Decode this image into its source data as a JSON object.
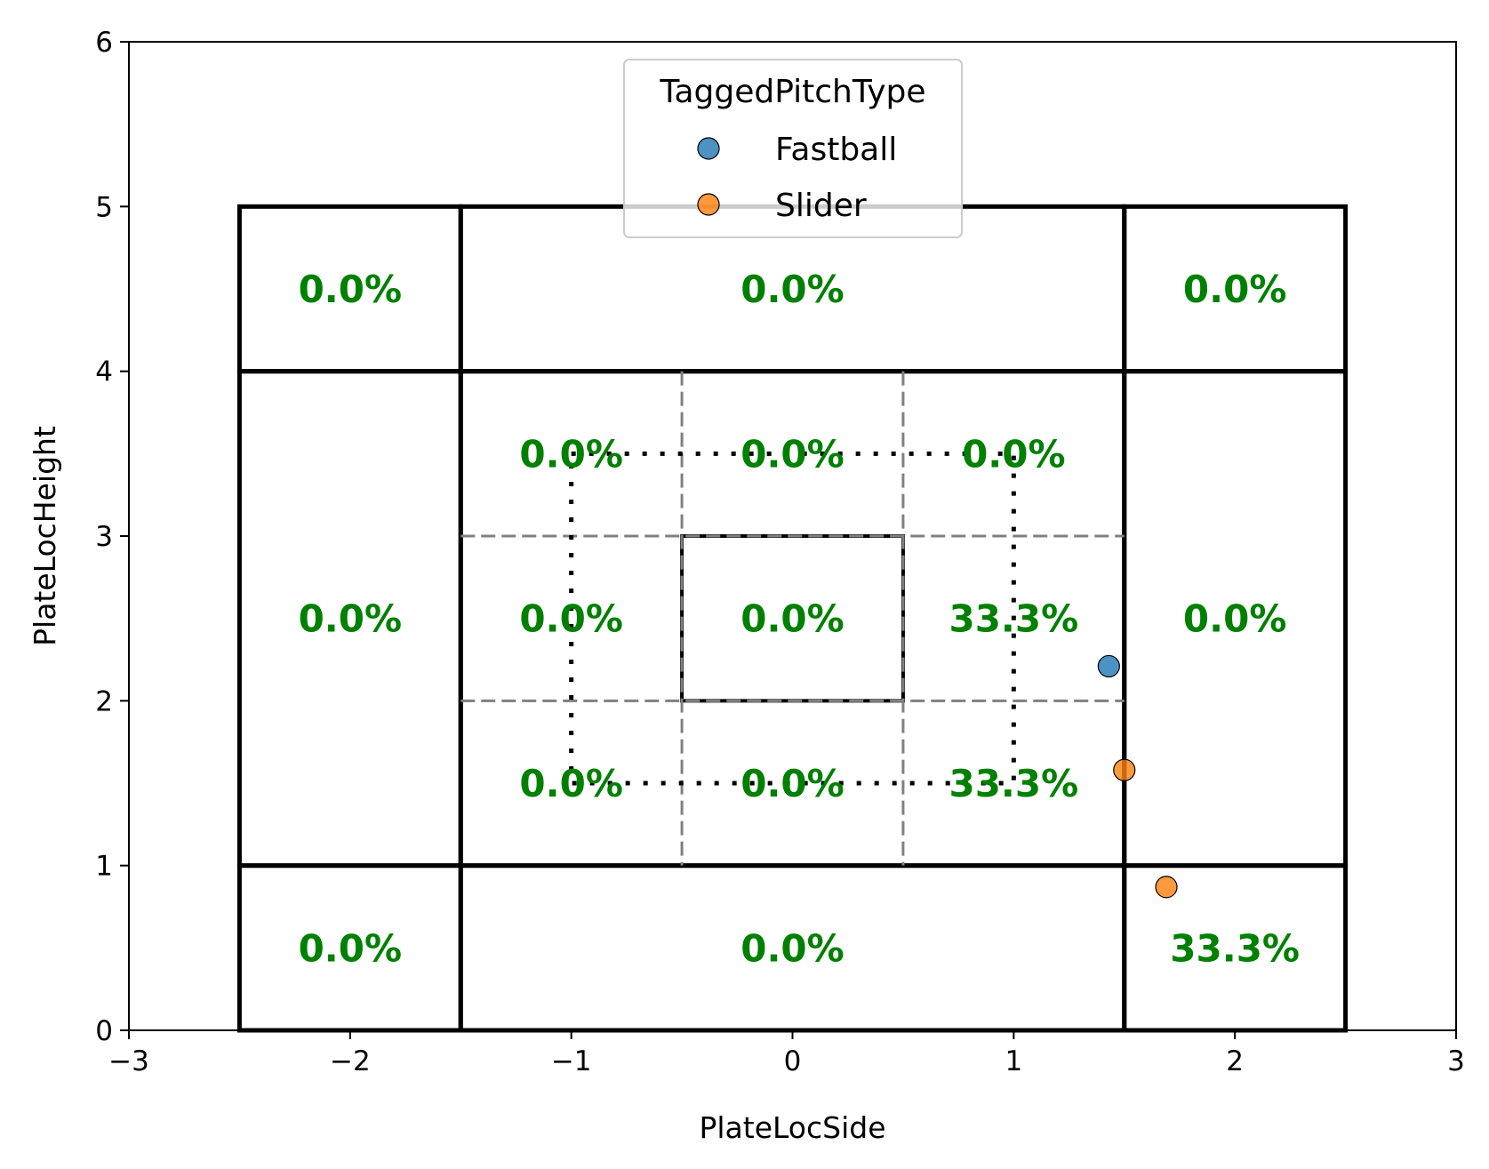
{
  "chart_data": {
    "type": "scatter",
    "title": "",
    "xlabel": "PlateLocSide",
    "ylabel": "PlateLocHeight",
    "xlim": [
      -3,
      3
    ],
    "ylim": [
      0,
      6
    ],
    "x_ticks": [
      -3,
      -2,
      -1,
      0,
      1,
      2,
      3
    ],
    "x_tick_labels": [
      "−3",
      "−2",
      "−1",
      "0",
      "1",
      "2",
      "3"
    ],
    "y_ticks": [
      0,
      1,
      2,
      3,
      4,
      5,
      6
    ],
    "y_tick_labels": [
      "0",
      "1",
      "2",
      "3",
      "4",
      "5",
      "6"
    ],
    "grid": false,
    "legend": {
      "title": "TaggedPitchType",
      "placement": "upper center",
      "entries": [
        {
          "name": "Fastball",
          "color": "#1f77b4"
        },
        {
          "name": "Slider",
          "color": "#ff7f0e"
        }
      ]
    },
    "series": [
      {
        "name": "Fastball",
        "color": "#1f77b4",
        "points": [
          {
            "x": 1.43,
            "y": 2.21
          }
        ]
      },
      {
        "name": "Slider",
        "color": "#ff7f0e",
        "points": [
          {
            "x": 1.5,
            "y": 1.58
          },
          {
            "x": 1.69,
            "y": 0.87
          }
        ]
      }
    ],
    "outer_zones": [
      {
        "x0": -2.5,
        "x1": -1.5,
        "y0": 4,
        "y1": 5
      },
      {
        "x0": -1.5,
        "x1": 1.5,
        "y0": 4,
        "y1": 5
      },
      {
        "x0": 1.5,
        "x1": 2.5,
        "y0": 4,
        "y1": 5
      },
      {
        "x0": -2.5,
        "x1": -1.5,
        "y0": 1,
        "y1": 4
      },
      {
        "x0": 1.5,
        "x1": 2.5,
        "y0": 1,
        "y1": 4
      },
      {
        "x0": -2.5,
        "x1": -1.5,
        "y0": 0,
        "y1": 1
      },
      {
        "x0": -1.5,
        "x1": 1.5,
        "y0": 0,
        "y1": 1
      },
      {
        "x0": 1.5,
        "x1": 2.5,
        "y0": 0,
        "y1": 1
      }
    ],
    "inner_grid": {
      "x_edges": [
        -1.5,
        -0.5,
        0.5,
        1.5
      ],
      "y_edges": [
        1,
        2,
        3,
        4
      ]
    },
    "heart_zone": {
      "x0": -0.5,
      "x1": 0.5,
      "y0": 2,
      "y1": 3
    },
    "strike_zone": {
      "x0": -1,
      "x1": 1,
      "y0": 1.5,
      "y1": 3.5
    },
    "zone_labels": [
      {
        "x": -2,
        "y": 4.5,
        "text": "0.0%"
      },
      {
        "x": 0,
        "y": 4.5,
        "text": "0.0%"
      },
      {
        "x": 2,
        "y": 4.5,
        "text": "0.0%"
      },
      {
        "x": -1,
        "y": 3.5,
        "text": "0.0%"
      },
      {
        "x": 0,
        "y": 3.5,
        "text": "0.0%"
      },
      {
        "x": 1,
        "y": 3.5,
        "text": "0.0%"
      },
      {
        "x": -2,
        "y": 2.5,
        "text": "0.0%"
      },
      {
        "x": -1,
        "y": 2.5,
        "text": "0.0%"
      },
      {
        "x": 0,
        "y": 2.5,
        "text": "0.0%"
      },
      {
        "x": 1,
        "y": 2.5,
        "text": "33.3%"
      },
      {
        "x": 2,
        "y": 2.5,
        "text": "0.0%"
      },
      {
        "x": -1,
        "y": 1.5,
        "text": "0.0%"
      },
      {
        "x": 0,
        "y": 1.5,
        "text": "0.0%"
      },
      {
        "x": 1,
        "y": 1.5,
        "text": "33.3%"
      },
      {
        "x": -2,
        "y": 0.5,
        "text": "0.0%"
      },
      {
        "x": 0,
        "y": 0.5,
        "text": "0.0%"
      },
      {
        "x": 2,
        "y": 0.5,
        "text": "33.3%"
      }
    ]
  }
}
